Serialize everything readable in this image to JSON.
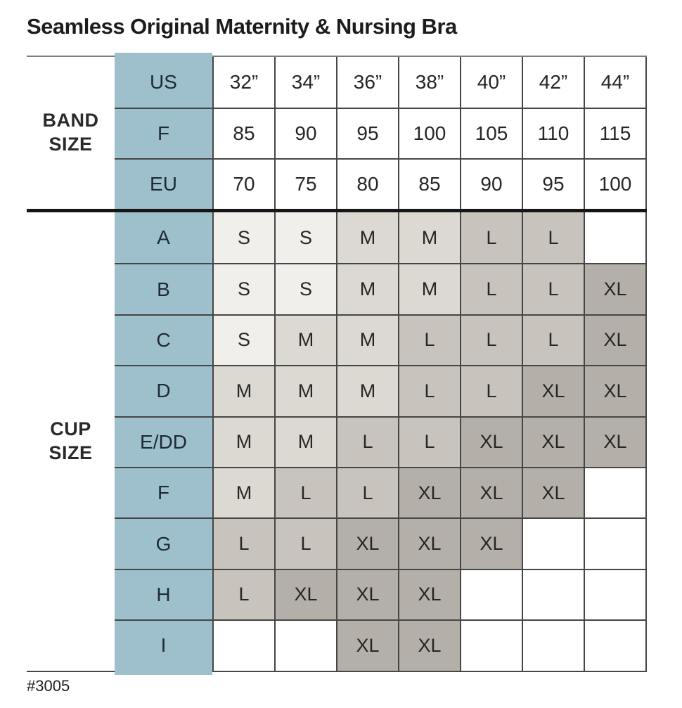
{
  "title": "Seamless Original Maternity & Nursing Bra",
  "footer": "#3005",
  "colors": {
    "blue": "#9ec0cc",
    "s": "#f1efeb",
    "m": "#dcd8d2",
    "l": "#c8c4bd",
    "xl": "#b4b0a9",
    "grid_line": "#464646",
    "thick_divider": "#161616",
    "top_border": "#7d7d7d"
  },
  "band_section": {
    "label": "BAND SIZE",
    "rows": [
      {
        "label": "US",
        "values": [
          "32”",
          "34”",
          "36”",
          "38”",
          "40”",
          "42”",
          "44”"
        ]
      },
      {
        "label": "F",
        "values": [
          "85",
          "90",
          "95",
          "100",
          "105",
          "110",
          "115"
        ]
      },
      {
        "label": "EU",
        "values": [
          "70",
          "75",
          "80",
          "85",
          "90",
          "95",
          "100"
        ]
      }
    ]
  },
  "cup_section": {
    "label": "CUP SIZE",
    "rows": [
      {
        "label": "A",
        "values": [
          "S",
          "S",
          "M",
          "M",
          "L",
          "L",
          ""
        ]
      },
      {
        "label": "B",
        "values": [
          "S",
          "S",
          "M",
          "M",
          "L",
          "L",
          "XL"
        ]
      },
      {
        "label": "C",
        "values": [
          "S",
          "M",
          "M",
          "L",
          "L",
          "L",
          "XL"
        ]
      },
      {
        "label": "D",
        "values": [
          "M",
          "M",
          "M",
          "L",
          "L",
          "XL",
          "XL"
        ]
      },
      {
        "label": "E/DD",
        "values": [
          "M",
          "M",
          "L",
          "L",
          "XL",
          "XL",
          "XL"
        ]
      },
      {
        "label": "F",
        "values": [
          "M",
          "L",
          "L",
          "XL",
          "XL",
          "XL",
          ""
        ]
      },
      {
        "label": "G",
        "values": [
          "L",
          "L",
          "XL",
          "XL",
          "XL",
          "",
          ""
        ]
      },
      {
        "label": "H",
        "values": [
          "L",
          "XL",
          "XL",
          "XL",
          "",
          "",
          ""
        ]
      },
      {
        "label": "I",
        "values": [
          "",
          "",
          "XL",
          "XL",
          "",
          "",
          ""
        ]
      }
    ]
  },
  "chart_data": {
    "type": "table",
    "title": "Seamless Original Maternity & Nursing Bra",
    "band_size_systems": [
      "US",
      "F",
      "EU"
    ],
    "band_sizes": {
      "US": [
        "32”",
        "34”",
        "36”",
        "38”",
        "40”",
        "42”",
        "44”"
      ],
      "F": [
        85,
        90,
        95,
        100,
        105,
        110,
        115
      ],
      "EU": [
        70,
        75,
        80,
        85,
        90,
        95,
        100
      ]
    },
    "cup_sizes": [
      "A",
      "B",
      "C",
      "D",
      "E/DD",
      "F",
      "G",
      "H",
      "I"
    ],
    "size_matrix_by_cup_then_band": [
      [
        "S",
        "S",
        "M",
        "M",
        "L",
        "L",
        null
      ],
      [
        "S",
        "S",
        "M",
        "M",
        "L",
        "L",
        "XL"
      ],
      [
        "S",
        "M",
        "M",
        "L",
        "L",
        "L",
        "XL"
      ],
      [
        "M",
        "M",
        "M",
        "L",
        "L",
        "XL",
        "XL"
      ],
      [
        "M",
        "M",
        "L",
        "L",
        "XL",
        "XL",
        "XL"
      ],
      [
        "M",
        "L",
        "L",
        "XL",
        "XL",
        "XL",
        null
      ],
      [
        "L",
        "L",
        "XL",
        "XL",
        "XL",
        null,
        null
      ],
      [
        "L",
        "XL",
        "XL",
        "XL",
        null,
        null,
        null
      ],
      [
        null,
        null,
        "XL",
        "XL",
        null,
        null,
        null
      ]
    ],
    "style_number": "#3005",
    "legend_shading": "cells shaded darker from S (lightest) to XL (darkest)"
  }
}
